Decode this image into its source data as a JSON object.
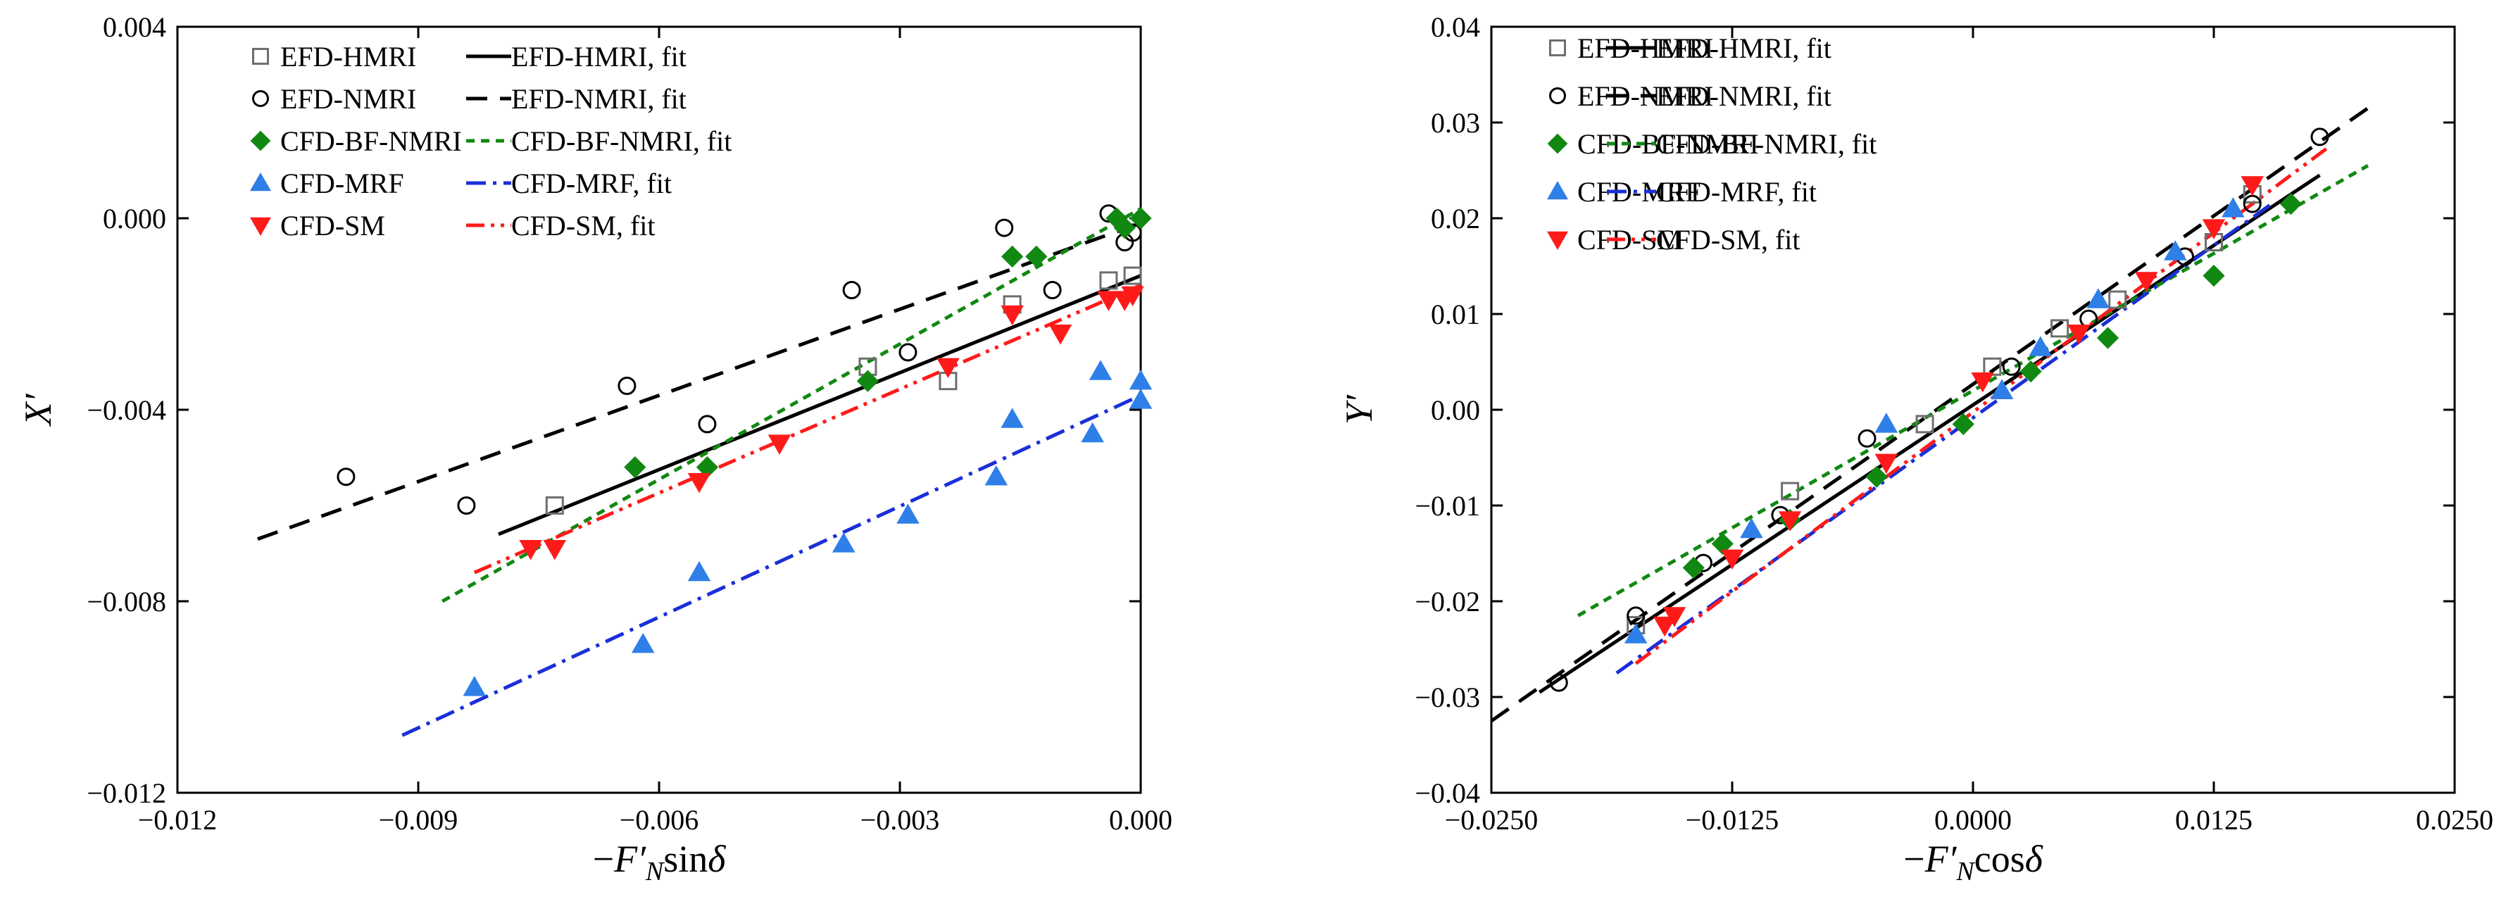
{
  "chart_data": [
    {
      "type": "scatter",
      "panel": "left",
      "xlabel": "−F′Nsinδ",
      "ylabel": "X′",
      "xlim": [
        -0.012,
        0.0
      ],
      "ylim": [
        -0.012,
        0.004
      ],
      "xticks": [
        -0.012,
        -0.009,
        -0.006,
        -0.003,
        0.0
      ],
      "xtick_labels": [
        "−0.012",
        "−0.009",
        "−0.006",
        "−0.003",
        "0.000"
      ],
      "yticks": [
        -0.012,
        -0.008,
        -0.004,
        0.0,
        0.004
      ],
      "ytick_labels": [
        "−0.012",
        "−0.008",
        "−0.004",
        "0.000",
        "0.004"
      ],
      "legend_position": "top-left",
      "series": [
        {
          "name": "EFD-HMRI",
          "marker": "square-open",
          "color": "#6e6e6e",
          "x": [
            -0.0073,
            -0.0034,
            -0.0024,
            -0.0016,
            -0.0004,
            -0.0001
          ],
          "y": [
            -0.006,
            -0.0031,
            -0.0034,
            -0.0018,
            -0.0013,
            -0.0012
          ]
        },
        {
          "name": "EFD-NMRI",
          "marker": "circle-open",
          "color": "#000000",
          "x": [
            -0.0099,
            -0.0084,
            -0.0064,
            -0.0054,
            -0.0036,
            -0.0029,
            -0.0017,
            -0.0011,
            -0.0004,
            -0.0002,
            -0.0001
          ],
          "y": [
            -0.0054,
            -0.006,
            -0.0035,
            -0.0043,
            -0.0015,
            -0.0028,
            -0.0002,
            -0.0015,
            0.0001,
            -0.0005,
            -0.0003
          ]
        },
        {
          "name": "CFD-BF-NMRI",
          "marker": "diamond",
          "color": "#118811",
          "x": [
            -0.0063,
            -0.0054,
            -0.0034,
            -0.0016,
            -0.0013,
            -0.0003,
            -0.0002,
            0.0
          ],
          "y": [
            -0.0052,
            -0.0052,
            -0.0034,
            -0.0008,
            -0.0008,
            0.0,
            -0.0002,
            0.0
          ]
        },
        {
          "name": "CFD-MRF",
          "marker": "triangle-up",
          "color": "#2f7fe8",
          "x": [
            -0.0083,
            -0.0062,
            -0.0055,
            -0.0037,
            -0.0029,
            -0.0018,
            -0.0016,
            -0.0006,
            -0.0005,
            0.0,
            0.0
          ],
          "y": [
            -0.0098,
            -0.0089,
            -0.0074,
            -0.0068,
            -0.0062,
            -0.0054,
            -0.0042,
            -0.0045,
            -0.0032,
            -0.0034,
            -0.0038
          ]
        },
        {
          "name": "CFD-SM",
          "marker": "triangle-down",
          "color": "#ff1a1a",
          "x": [
            -0.0076,
            -0.0073,
            -0.0055,
            -0.0045,
            -0.0024,
            -0.0016,
            -0.001,
            -0.0004,
            -0.0002,
            -0.0001
          ],
          "y": [
            -0.0069,
            -0.0069,
            -0.0055,
            -0.0047,
            -0.0031,
            -0.002,
            -0.0024,
            -0.0017,
            -0.0017,
            -0.0016
          ]
        }
      ],
      "fits": [
        {
          "name": "EFD-HMRI, fit",
          "style": "solid",
          "color": "#000000",
          "x": [
            -0.008,
            0.0
          ],
          "y": [
            -0.0066,
            -0.0012
          ]
        },
        {
          "name": "EFD-NMRI, fit",
          "style": "dash",
          "color": "#000000",
          "x": [
            -0.011,
            0.0
          ],
          "y": [
            -0.0067,
            -0.0001
          ]
        },
        {
          "name": "CFD-BF-NMRI, fit",
          "style": "short-dash",
          "color": "#118811",
          "x": [
            -0.0087,
            0.0
          ],
          "y": [
            -0.008,
            0.0002
          ]
        },
        {
          "name": "CFD-MRF, fit",
          "style": "dash-dot",
          "color": "#1a2fd8",
          "x": [
            -0.0092,
            0.0
          ],
          "y": [
            -0.0108,
            -0.0037
          ]
        },
        {
          "name": "CFD-SM, fit",
          "style": "dash-dot-dot",
          "color": "#ff1a1a",
          "x": [
            -0.0083,
            0.0
          ],
          "y": [
            -0.0074,
            -0.0014
          ]
        }
      ]
    },
    {
      "type": "scatter",
      "panel": "right",
      "xlabel": "−F′Ncosδ",
      "ylabel": "Y′",
      "xlim": [
        -0.025,
        0.025
      ],
      "ylim": [
        -0.04,
        0.04
      ],
      "xticks": [
        -0.025,
        -0.0125,
        0.0,
        0.0125,
        0.025
      ],
      "xtick_labels": [
        "−0.0250",
        "−0.0125",
        "0.0000",
        "0.0125",
        "0.0250"
      ],
      "yticks": [
        -0.04,
        -0.03,
        -0.02,
        -0.01,
        0.0,
        0.01,
        0.02,
        0.03,
        0.04
      ],
      "ytick_labels": [
        "−0.04",
        "−0.03",
        "−0.02",
        "−0.01",
        "0.00",
        "0.01",
        "0.02",
        "0.03",
        "0.04"
      ],
      "legend_position": "top-left",
      "series": [
        {
          "name": "EFD-HMRI",
          "marker": "square-open",
          "color": "#6e6e6e",
          "x": [
            -0.0175,
            -0.0095,
            -0.0025,
            0.001,
            0.0045,
            0.0075,
            0.0125,
            0.0145
          ],
          "y": [
            -0.0225,
            -0.0085,
            -0.0015,
            0.0045,
            0.0085,
            0.0115,
            0.0175,
            0.0225
          ]
        },
        {
          "name": "EFD-NMRI",
          "marker": "circle-open",
          "color": "#000000",
          "x": [
            -0.0215,
            -0.0175,
            -0.014,
            -0.01,
            -0.0055,
            0.002,
            0.006,
            0.011,
            0.0145,
            0.018
          ],
          "y": [
            -0.0285,
            -0.0215,
            -0.016,
            -0.011,
            -0.003,
            0.0045,
            0.0095,
            0.016,
            0.0215,
            0.0285
          ]
        },
        {
          "name": "CFD-BF-NMRI",
          "marker": "diamond",
          "color": "#118811",
          "x": [
            -0.0145,
            -0.013,
            -0.0095,
            -0.005,
            -0.0005,
            0.003,
            0.007,
            0.0125,
            0.0165
          ],
          "y": [
            -0.0165,
            -0.014,
            -0.0115,
            -0.007,
            -0.0015,
            0.004,
            0.0075,
            0.014,
            0.0215
          ]
        },
        {
          "name": "CFD-MRF",
          "marker": "triangle-up",
          "color": "#2f7fe8",
          "x": [
            -0.0175,
            -0.0115,
            -0.0045,
            0.0015,
            0.0035,
            0.0065,
            0.0105,
            0.0135
          ],
          "y": [
            -0.0235,
            -0.0125,
            -0.0015,
            0.002,
            0.0065,
            0.0115,
            0.0165,
            0.021
          ]
        },
        {
          "name": "CFD-SM",
          "marker": "triangle-down",
          "color": "#ff1a1a",
          "x": [
            -0.016,
            -0.0155,
            -0.0125,
            -0.0095,
            -0.0045,
            0.0005,
            0.0055,
            0.009,
            0.0125,
            0.0145
          ],
          "y": [
            -0.0225,
            -0.0215,
            -0.0155,
            -0.0115,
            -0.0055,
            0.003,
            0.008,
            0.0135,
            0.019,
            0.0235
          ]
        }
      ],
      "fits": [
        {
          "name": "EFD-HMRI, fit",
          "style": "solid",
          "color": "#000000",
          "x": [
            -0.0225,
            0.018
          ],
          "y": [
            -0.0295,
            0.0245
          ]
        },
        {
          "name": "EFD-NMRI, fit",
          "style": "dash",
          "color": "#000000",
          "x": [
            -0.025,
            0.0205
          ],
          "y": [
            -0.0325,
            0.0315
          ]
        },
        {
          "name": "CFD-BF-NMRI, fit",
          "style": "short-dash",
          "color": "#118811",
          "x": [
            -0.0205,
            0.0205
          ],
          "y": [
            -0.0215,
            0.0255
          ]
        },
        {
          "name": "CFD-MRF, fit",
          "style": "dash-dot",
          "color": "#1a2fd8",
          "x": [
            -0.0185,
            0.0155
          ],
          "y": [
            -0.0275,
            0.0215
          ]
        },
        {
          "name": "CFD-SM, fit",
          "style": "dash-dot-dot",
          "color": "#ff1a1a",
          "x": [
            -0.0175,
            0.0185
          ],
          "y": [
            -0.0265,
            0.0275
          ]
        }
      ]
    }
  ]
}
